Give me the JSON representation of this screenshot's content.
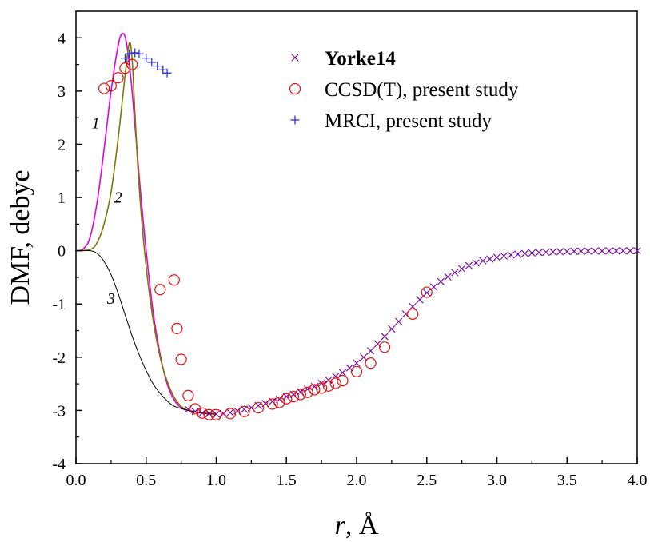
{
  "chart_data": {
    "type": "scatter",
    "xlabel": {
      "italic": "r",
      "rest": ", Å"
    },
    "ylabel": "DMF, debye",
    "xlim": [
      0.0,
      4.0
    ],
    "ylim": [
      -4,
      4.5
    ],
    "x_ticks": [
      "0.0",
      "0.5",
      "1.0",
      "1.5",
      "2.0",
      "2.5",
      "3.0",
      "3.5",
      "4.0"
    ],
    "y_ticks": [
      "-4",
      "-3",
      "-2",
      "-1",
      "0",
      "1",
      "2",
      "3",
      "4"
    ],
    "grid": false,
    "legend_position": "top-right",
    "curve_labels": [
      {
        "text": "1",
        "x": 0.14,
        "y": 2.3
      },
      {
        "text": "2",
        "x": 0.3,
        "y": 0.9
      },
      {
        "text": "3",
        "x": 0.25,
        "y": -1.0
      }
    ],
    "series": [
      {
        "name": "1",
        "kind": "line",
        "color": "#e000e0",
        "points": [
          [
            0.0,
            0.0
          ],
          [
            0.05,
            0.03
          ],
          [
            0.1,
            0.25
          ],
          [
            0.15,
            0.9
          ],
          [
            0.2,
            1.9
          ],
          [
            0.25,
            3.0
          ],
          [
            0.3,
            3.85
          ],
          [
            0.33,
            4.08
          ],
          [
            0.36,
            3.9
          ],
          [
            0.4,
            3.0
          ],
          [
            0.45,
            1.4
          ],
          [
            0.5,
            0.0
          ],
          [
            0.55,
            -1.15
          ],
          [
            0.6,
            -1.95
          ],
          [
            0.65,
            -2.5
          ],
          [
            0.7,
            -2.8
          ],
          [
            0.75,
            -2.95
          ],
          [
            0.8,
            -3.0
          ],
          [
            0.9,
            -3.05
          ],
          [
            1.0,
            -3.07
          ]
        ]
      },
      {
        "name": "2",
        "kind": "line",
        "color": "#7a7a00",
        "points": [
          [
            0.0,
            0.0
          ],
          [
            0.1,
            0.02
          ],
          [
            0.15,
            0.15
          ],
          [
            0.2,
            0.5
          ],
          [
            0.25,
            1.1
          ],
          [
            0.3,
            2.1
          ],
          [
            0.35,
            3.3
          ],
          [
            0.38,
            3.9
          ],
          [
            0.4,
            3.6
          ],
          [
            0.42,
            2.6
          ],
          [
            0.45,
            1.2
          ],
          [
            0.5,
            -0.3
          ],
          [
            0.55,
            -1.3
          ],
          [
            0.6,
            -2.0
          ],
          [
            0.65,
            -2.45
          ],
          [
            0.7,
            -2.75
          ],
          [
            0.75,
            -2.92
          ],
          [
            0.8,
            -3.0
          ],
          [
            0.9,
            -3.05
          ],
          [
            1.0,
            -3.07
          ]
        ]
      },
      {
        "name": "3",
        "kind": "line",
        "color": "#000000",
        "points": [
          [
            0.0,
            0.0
          ],
          [
            0.1,
            0.0
          ],
          [
            0.15,
            -0.05
          ],
          [
            0.2,
            -0.2
          ],
          [
            0.25,
            -0.45
          ],
          [
            0.3,
            -0.8
          ],
          [
            0.35,
            -1.2
          ],
          [
            0.4,
            -1.6
          ],
          [
            0.45,
            -1.95
          ],
          [
            0.5,
            -2.25
          ],
          [
            0.55,
            -2.5
          ],
          [
            0.6,
            -2.68
          ],
          [
            0.65,
            -2.82
          ],
          [
            0.7,
            -2.92
          ],
          [
            0.8,
            -3.0
          ],
          [
            0.9,
            -3.05
          ],
          [
            1.0,
            -3.07
          ]
        ]
      },
      {
        "name": "Yorke14",
        "kind": "marker",
        "marker": "x",
        "color": "#7b0fa0",
        "points": [
          [
            0.8,
            -2.98
          ],
          [
            0.85,
            -3.02
          ],
          [
            0.9,
            -3.05
          ],
          [
            0.95,
            -3.06
          ],
          [
            1.0,
            -3.07
          ],
          [
            1.05,
            -3.06
          ],
          [
            1.1,
            -3.04
          ],
          [
            1.15,
            -3.01
          ],
          [
            1.2,
            -2.98
          ],
          [
            1.25,
            -2.95
          ],
          [
            1.3,
            -2.91
          ],
          [
            1.35,
            -2.87
          ],
          [
            1.4,
            -2.83
          ],
          [
            1.45,
            -2.79
          ],
          [
            1.5,
            -2.74
          ],
          [
            1.55,
            -2.7
          ],
          [
            1.6,
            -2.65
          ],
          [
            1.65,
            -2.6
          ],
          [
            1.7,
            -2.55
          ],
          [
            1.75,
            -2.49
          ],
          [
            1.8,
            -2.43
          ],
          [
            1.85,
            -2.36
          ],
          [
            1.9,
            -2.29
          ],
          [
            1.95,
            -2.2
          ],
          [
            2.0,
            -2.11
          ],
          [
            2.05,
            -2.0
          ],
          [
            2.1,
            -1.88
          ],
          [
            2.15,
            -1.75
          ],
          [
            2.2,
            -1.61
          ],
          [
            2.25,
            -1.47
          ],
          [
            2.3,
            -1.33
          ],
          [
            2.35,
            -1.19
          ],
          [
            2.4,
            -1.05
          ],
          [
            2.45,
            -0.92
          ],
          [
            2.5,
            -0.79
          ],
          [
            2.55,
            -0.68
          ],
          [
            2.6,
            -0.58
          ],
          [
            2.65,
            -0.49
          ],
          [
            2.7,
            -0.41
          ],
          [
            2.75,
            -0.34
          ],
          [
            2.8,
            -0.28
          ],
          [
            2.85,
            -0.23
          ],
          [
            2.9,
            -0.19
          ],
          [
            2.95,
            -0.155
          ],
          [
            3.0,
            -0.125
          ],
          [
            3.05,
            -0.1
          ],
          [
            3.1,
            -0.08
          ],
          [
            3.15,
            -0.065
          ],
          [
            3.2,
            -0.052
          ],
          [
            3.25,
            -0.042
          ],
          [
            3.3,
            -0.034
          ],
          [
            3.35,
            -0.027
          ],
          [
            3.4,
            -0.022
          ],
          [
            3.45,
            -0.018
          ],
          [
            3.5,
            -0.014
          ],
          [
            3.55,
            -0.011
          ],
          [
            3.6,
            -0.009
          ],
          [
            3.65,
            -0.007
          ],
          [
            3.7,
            -0.006
          ],
          [
            3.75,
            -0.005
          ],
          [
            3.8,
            -0.004
          ],
          [
            3.85,
            -0.003
          ],
          [
            3.9,
            -0.002
          ],
          [
            3.95,
            -0.002
          ],
          [
            4.0,
            -0.001
          ]
        ]
      },
      {
        "name": "CCSD(T), present study",
        "kind": "marker",
        "marker": "circle",
        "color": "#e01010",
        "points": [
          [
            0.2,
            3.05
          ],
          [
            0.25,
            3.1
          ],
          [
            0.3,
            3.25
          ],
          [
            0.35,
            3.43
          ],
          [
            0.4,
            3.5
          ],
          [
            0.6,
            -0.73
          ],
          [
            0.7,
            -0.55
          ],
          [
            0.72,
            -1.46
          ],
          [
            0.75,
            -2.04
          ],
          [
            0.8,
            -2.72
          ],
          [
            0.85,
            -2.97
          ],
          [
            0.9,
            -3.05
          ],
          [
            0.95,
            -3.08
          ],
          [
            1.0,
            -3.08
          ],
          [
            1.1,
            -3.06
          ],
          [
            1.2,
            -3.02
          ],
          [
            1.3,
            -2.95
          ],
          [
            1.4,
            -2.88
          ],
          [
            1.45,
            -2.85
          ],
          [
            1.5,
            -2.78
          ],
          [
            1.55,
            -2.74
          ],
          [
            1.6,
            -2.7
          ],
          [
            1.65,
            -2.66
          ],
          [
            1.7,
            -2.61
          ],
          [
            1.75,
            -2.58
          ],
          [
            1.8,
            -2.54
          ],
          [
            1.85,
            -2.49
          ],
          [
            1.9,
            -2.44
          ],
          [
            2.0,
            -2.27
          ],
          [
            2.1,
            -2.11
          ],
          [
            2.2,
            -1.81
          ],
          [
            2.4,
            -1.19
          ],
          [
            2.5,
            -0.78
          ]
        ]
      },
      {
        "name": "MRCI, present study",
        "kind": "marker",
        "marker": "plus",
        "color": "#2020e0",
        "points": [
          [
            0.35,
            3.62
          ],
          [
            0.38,
            3.7
          ],
          [
            0.42,
            3.72
          ],
          [
            0.45,
            3.7
          ],
          [
            0.5,
            3.62
          ],
          [
            0.54,
            3.54
          ],
          [
            0.58,
            3.47
          ],
          [
            0.62,
            3.4
          ],
          [
            0.65,
            3.34
          ]
        ]
      }
    ],
    "legend": [
      {
        "marker": "x",
        "color": "#7b0fa0",
        "label": "Yorke14",
        "bold": true
      },
      {
        "marker": "circle",
        "color": "#e01010",
        "label": "CCSD(T), present study",
        "bold": false
      },
      {
        "marker": "plus",
        "color": "#2020e0",
        "label": "MRCI, present study",
        "bold": false
      }
    ]
  }
}
